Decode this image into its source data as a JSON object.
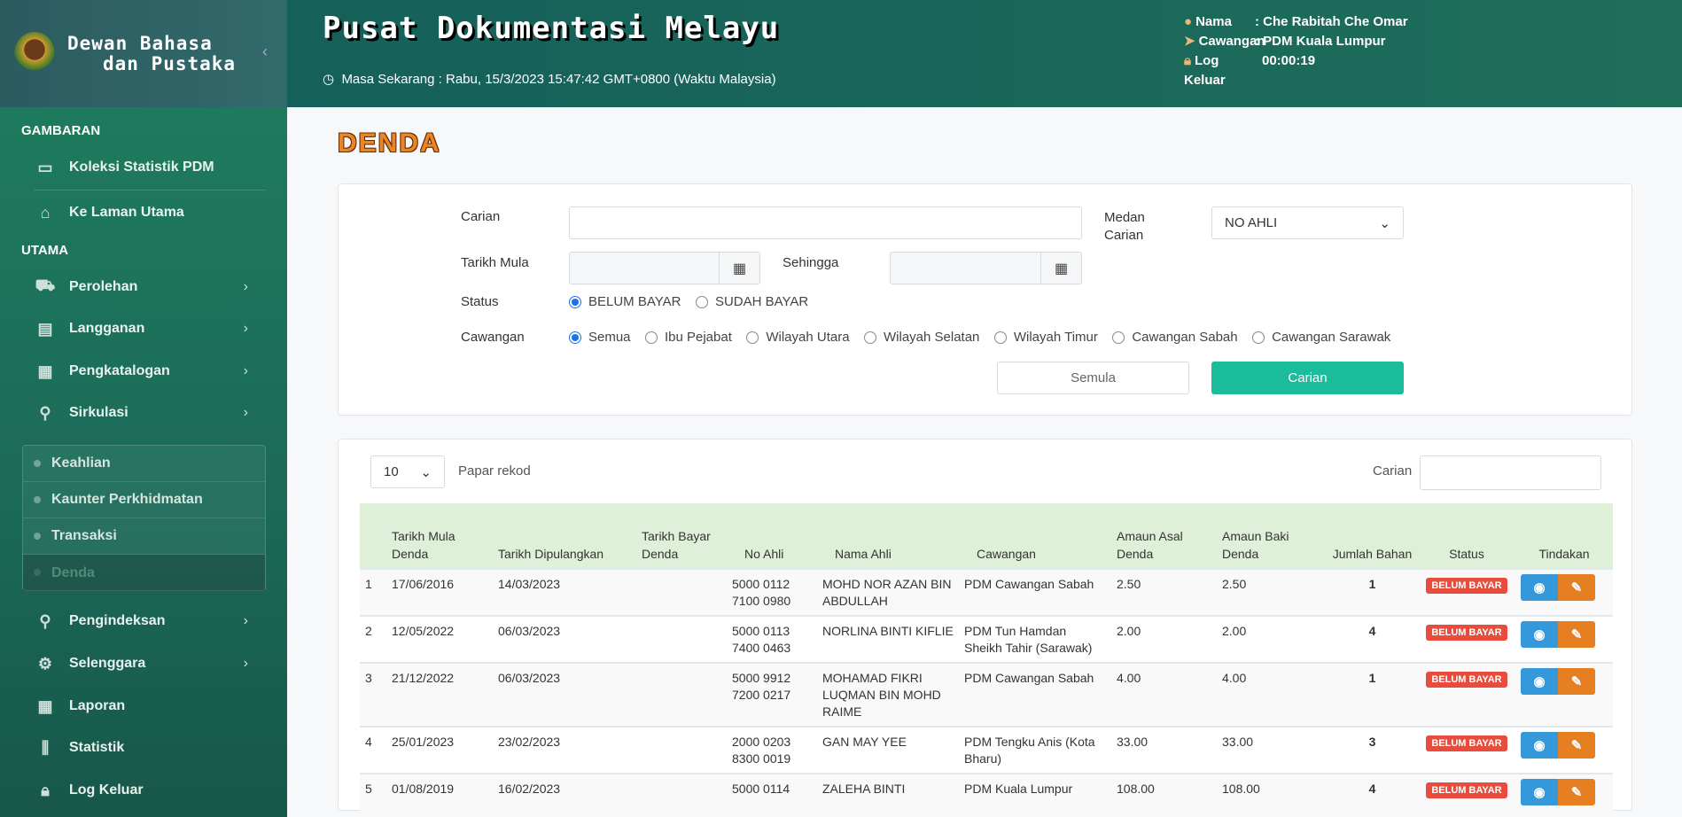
{
  "brand": {
    "line1": "Dewan Bahasa",
    "line2": "dan Pustaka"
  },
  "header": {
    "title": "Pusat Dokumentasi Melayu",
    "clock": "Masa Sekarang : Rabu, 15/3/2023 15:47:42 GMT+0800 (Waktu Malaysia)",
    "user": {
      "nama_label": "Nama",
      "nama": ": Che Rabitah Che Omar",
      "cawangan_label": "Cawangan",
      "cawangan": ": PDM Kuala Lumpur",
      "logout_label": "Log Keluar",
      "logout_timer": "00:00:19"
    }
  },
  "sidebar": {
    "sec1": "GAMBARAN",
    "koleksi": "Koleksi Statistik PDM",
    "laman": "Ke Laman Utama",
    "sec2": "UTAMA",
    "items": [
      "Perolehan",
      "Langganan",
      "Pengkatalogan",
      "Sirkulasi"
    ],
    "sub": [
      "Keahlian",
      "Kaunter Perkhidmatan",
      "Transaksi",
      "Denda"
    ],
    "items2": [
      "Pengindeksan",
      "Selenggara",
      "Laporan",
      "Statistik",
      "Log Keluar"
    ]
  },
  "page_title": "DENDA",
  "filter": {
    "carian_label": "Carian",
    "carian_value": "",
    "medan_label": "Medan Carian",
    "medan_value": "NO AHLI",
    "mula_label": "Tarikh Mula",
    "sehingga_label": "Sehingga",
    "status_label": "Status",
    "status_options": [
      "BELUM BAYAR",
      "SUDAH BAYAR"
    ],
    "cawangan_label": "Cawangan",
    "cawangan_options": [
      "Semua",
      "Ibu Pejabat",
      "Wilayah Utara",
      "Wilayah Selatan",
      "Wilayah Timur",
      "Cawangan Sabah",
      "Cawangan Sarawak"
    ],
    "reset": "Semula",
    "search": "Carian"
  },
  "table_ctrl": {
    "length": "10",
    "length_label": "Papar rekod",
    "search_label": "Carian"
  },
  "table": {
    "headers": [
      "",
      "Tarikh Mula Denda",
      "Tarikh Dipulangkan",
      "Tarikh Bayar Denda",
      "No Ahli",
      "Nama Ahli",
      "Cawangan",
      "Amaun Asal Denda",
      "Amaun Baki Denda",
      "Jumlah Bahan",
      "Status",
      "Tindakan"
    ],
    "rows": [
      [
        "1",
        "17/06/2016",
        "14/03/2023",
        "",
        "5000 0112 7100 0980",
        "MOHD NOR AZAN BIN ABDULLAH",
        "PDM Cawangan Sabah",
        "2.50",
        "2.50",
        "1",
        "BELUM BAYAR"
      ],
      [
        "2",
        "12/05/2022",
        "06/03/2023",
        "",
        "5000 0113 7400 0463",
        "NORLINA BINTI KIFLIE",
        "PDM Tun Hamdan Sheikh Tahir (Sarawak)",
        "2.00",
        "2.00",
        "4",
        "BELUM BAYAR"
      ],
      [
        "3",
        "21/12/2022",
        "06/03/2023",
        "",
        "5000 9912 7200 0217",
        "MOHAMAD FIKRI LUQMAN BIN MOHD RAIME",
        "PDM Cawangan Sabah",
        "4.00",
        "4.00",
        "1",
        "BELUM BAYAR"
      ],
      [
        "4",
        "25/01/2023",
        "23/02/2023",
        "",
        "2000 0203 8300 0019",
        "GAN MAY YEE",
        "PDM Tengku Anis (Kota Bharu)",
        "33.00",
        "33.00",
        "3",
        "BELUM BAYAR"
      ],
      [
        "5",
        "01/08/2019",
        "16/02/2023",
        "",
        "5000 0114",
        "ZALEHA BINTI",
        "PDM Kuala Lumpur",
        "108.00",
        "108.00",
        "4",
        "BELUM BAYAR"
      ]
    ]
  },
  "colors": {
    "accent": "#1abc9c",
    "danger": "#e74c3c",
    "view": "#3498db",
    "edit": "#e67e22",
    "header_bg": "#dff0d8"
  }
}
